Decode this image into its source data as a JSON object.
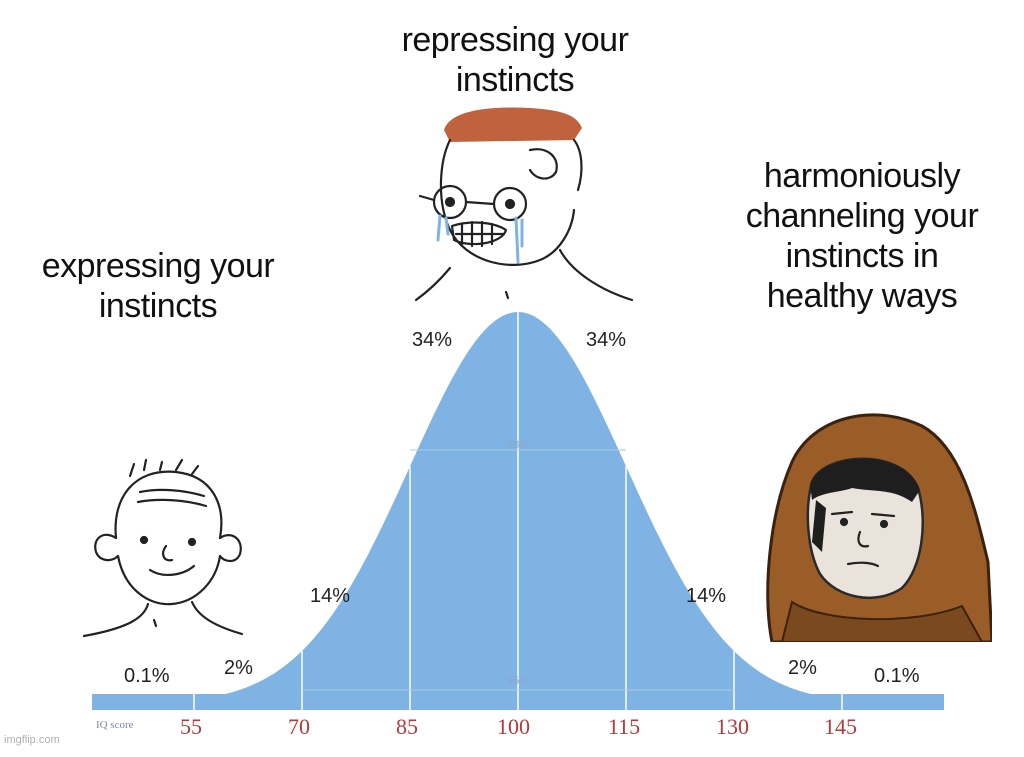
{
  "captions": {
    "left": [
      "expressing your",
      "instincts"
    ],
    "middle": [
      "repressing your",
      "instincts"
    ],
    "right": [
      "harmoniously",
      "channeling your",
      "instincts in",
      "healthy ways"
    ]
  },
  "curve": {
    "fill_color": "#7fb3e3",
    "percent_labels": [
      "0.1%",
      "2%",
      "14%",
      "34%",
      "34%",
      "14%",
      "2%",
      "0.1%"
    ],
    "inner_labels": [
      "68%",
      "95%"
    ],
    "axis_label": "IQ score",
    "ticks": [
      "55",
      "70",
      "85",
      "100",
      "115",
      "130",
      "145"
    ]
  },
  "figures": {
    "left": "wojak-smiling-figure",
    "middle": "crying-glasses-wojak-figure",
    "right": "hooded-figure-brown-cloak"
  },
  "watermark": "imgflip.com"
}
